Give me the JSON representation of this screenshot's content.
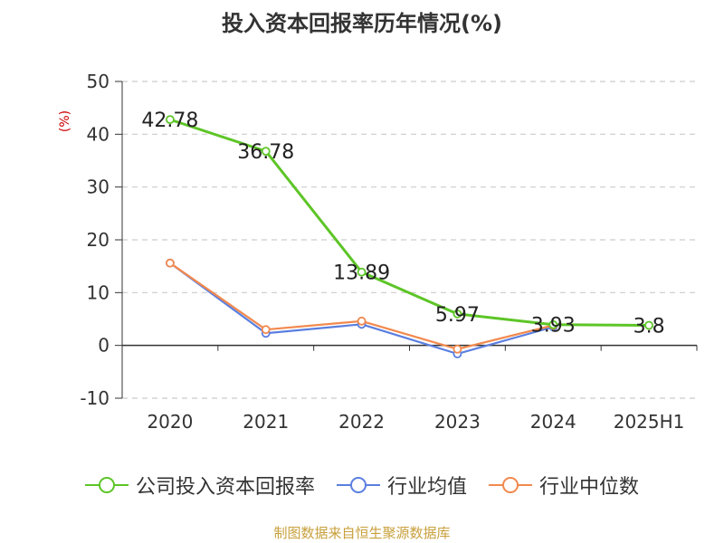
{
  "title": "投入资本回报率历年情况(%)",
  "source": "制图数据来自恒生聚源数据库",
  "colors": {
    "company": "#5dc527",
    "average": "#5b7fe0",
    "median": "#f2894e",
    "grid": "#cccccc",
    "axis": "#333333"
  },
  "chart_data": {
    "type": "line",
    "ylabel": "(%)",
    "ylim": [
      -10,
      50
    ],
    "yticks": [
      -10,
      0,
      10,
      20,
      30,
      40,
      50
    ],
    "categories": [
      "2020",
      "2021",
      "2022",
      "2023",
      "2024",
      "2025H1"
    ],
    "grid": true,
    "legend_position": "bottom",
    "series": [
      {
        "name": "公司投入资本回报率",
        "values": [
          42.78,
          36.78,
          13.89,
          5.97,
          3.93,
          3.8
        ],
        "labels": [
          "42.78",
          "36.78",
          "13.89",
          "5.97",
          "3.93",
          "3.8"
        ]
      },
      {
        "name": "行业均值",
        "values": [
          15.6,
          2.3,
          4.0,
          -1.6,
          3.5,
          null
        ]
      },
      {
        "name": "行业中位数",
        "values": [
          15.6,
          3.0,
          4.6,
          -0.7,
          3.8,
          null
        ]
      }
    ]
  }
}
